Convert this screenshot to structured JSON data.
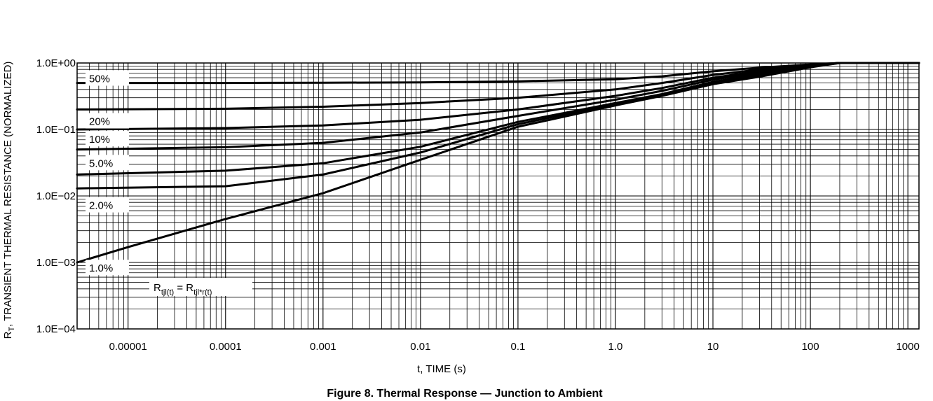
{
  "chart_data": {
    "type": "line",
    "title": "",
    "caption": "Figure 8. Thermal Response — Junction to Ambient",
    "xlabel": "t, TIME (s)",
    "ylabel_main": "R",
    "ylabel_sub": "T",
    "ylabel_rest": ", TRANSIENT THERMAL RESISTANCE (NORMALIZED)",
    "x_scale": "log",
    "y_scale": "log",
    "xlim": [
      3e-06,
      1300
    ],
    "ylim": [
      0.0001,
      1.0
    ],
    "grid": true,
    "x_ticks": [
      {
        "value": 1e-05,
        "label": "0.00001"
      },
      {
        "value": 0.0001,
        "label": "0.0001"
      },
      {
        "value": 0.001,
        "label": "0.001"
      },
      {
        "value": 0.01,
        "label": "0.01"
      },
      {
        "value": 0.1,
        "label": "0.1"
      },
      {
        "value": 1,
        "label": "1.0"
      },
      {
        "value": 10,
        "label": "10"
      },
      {
        "value": 100,
        "label": "100"
      },
      {
        "value": 1000,
        "label": "1000"
      }
    ],
    "y_ticks": [
      {
        "value": 1.0,
        "label": "1.0E+00"
      },
      {
        "value": 0.1,
        "label": "1.0E−01"
      },
      {
        "value": 0.01,
        "label": "1.0E−02"
      },
      {
        "value": 0.001,
        "label": "1.0E−03"
      },
      {
        "value": 0.0001,
        "label": "1.0E−04"
      }
    ],
    "formula": {
      "lhs": "R",
      "lhs_sub": "tjl(t)",
      "eq": " = ",
      "rhs": "R",
      "rhs_sub": "tjl*r(t)"
    },
    "series": [
      {
        "name": "50%",
        "label_value": 0.58,
        "x": [
          3e-06,
          0.0001,
          0.001,
          0.01,
          0.1,
          1,
          3,
          10,
          30,
          100,
          200,
          1300
        ],
        "y": [
          0.5,
          0.5,
          0.505,
          0.51,
          0.53,
          0.57,
          0.63,
          0.75,
          0.85,
          0.95,
          1.0,
          1.0
        ]
      },
      {
        "name": "20%",
        "label_value": 0.132,
        "x": [
          3e-06,
          0.0001,
          0.001,
          0.01,
          0.1,
          1,
          3,
          10,
          30,
          100,
          200,
          1300
        ],
        "y": [
          0.2,
          0.205,
          0.22,
          0.25,
          0.3,
          0.4,
          0.5,
          0.66,
          0.8,
          0.94,
          1.0,
          1.0
        ]
      },
      {
        "name": "10%",
        "label_value": 0.071,
        "x": [
          3e-06,
          0.0001,
          0.001,
          0.01,
          0.1,
          1,
          3,
          10,
          30,
          100,
          200,
          1300
        ],
        "y": [
          0.1,
          0.105,
          0.115,
          0.14,
          0.2,
          0.32,
          0.42,
          0.6,
          0.76,
          0.93,
          1.0,
          1.0
        ]
      },
      {
        "name": "5.0%",
        "label_value": 0.031,
        "x": [
          3e-06,
          0.0001,
          0.001,
          0.01,
          0.1,
          1,
          3,
          10,
          30,
          100,
          200,
          1300
        ],
        "y": [
          0.05,
          0.054,
          0.063,
          0.09,
          0.16,
          0.28,
          0.38,
          0.56,
          0.72,
          0.92,
          1.0,
          1.0
        ]
      },
      {
        "name": "2.0%",
        "label_value": 0.0072,
        "x": [
          3e-06,
          0.0001,
          0.001,
          0.01,
          0.1,
          1,
          3,
          10,
          30,
          100,
          200,
          1300
        ],
        "y": [
          0.021,
          0.024,
          0.031,
          0.055,
          0.13,
          0.25,
          0.34,
          0.52,
          0.68,
          0.9,
          1.0,
          1.0
        ]
      },
      {
        "name": "",
        "label_value": null,
        "x": [
          3e-06,
          0.0001,
          0.001,
          0.01,
          0.1,
          1,
          3,
          10,
          30,
          100,
          200,
          1300
        ],
        "y": [
          0.013,
          0.014,
          0.021,
          0.045,
          0.12,
          0.24,
          0.33,
          0.5,
          0.65,
          0.88,
          1.0,
          1.0
        ]
      },
      {
        "name": "1.0%",
        "label_value": 0.00082,
        "x": [
          3e-06,
          1e-05,
          0.0001,
          0.001,
          0.01,
          0.1,
          1,
          3,
          10,
          30,
          100,
          200,
          1300
        ],
        "y": [
          0.001,
          0.0017,
          0.0045,
          0.011,
          0.035,
          0.11,
          0.23,
          0.32,
          0.48,
          0.62,
          0.86,
          1.0,
          1.0
        ]
      }
    ]
  }
}
